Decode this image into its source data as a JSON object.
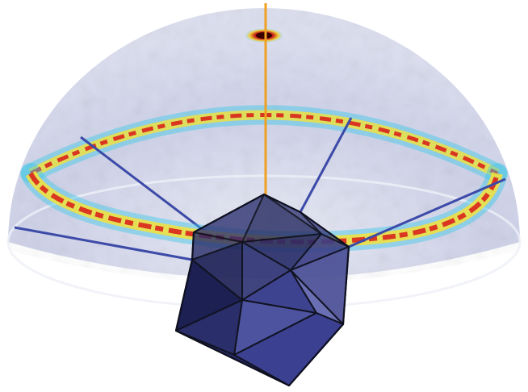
{
  "figure": {
    "colors": {
      "dome_fill": "#c9cde6",
      "dome_edge": "#e8eaf4",
      "ring_outer": "#3ec7e6",
      "ring_mid": "#f4e23a",
      "ring_core": "#d8231c",
      "polar_spot": "#8b0a0a",
      "axis": "#f0a020",
      "spoke": "#3c4aa8",
      "solid_dark": "#262a62",
      "solid_mid": "#3a3f86",
      "solid_light": "#5a5fa6",
      "edge": "#111322"
    },
    "icons": [
      "hemisphere-dome",
      "equatorial-ring",
      "icosahedron",
      "polar-spot",
      "vertical-axis",
      "spoke-lines"
    ]
  }
}
